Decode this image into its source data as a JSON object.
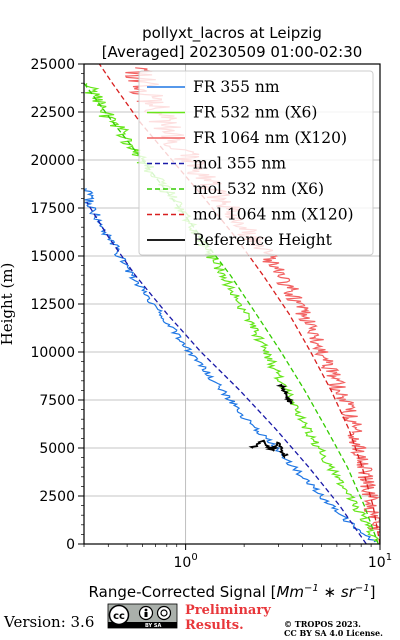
{
  "chart_data": {
    "type": "line",
    "title": "pollyxt_lacros at Leipzig",
    "subtitle": "[Averaged] 20230509 01:00-02:30",
    "xlabel": "Range-Corrected Signal [Mm⁻¹ * sr⁻¹]",
    "xlabel_parts": {
      "main": "Range-Corrected Signal [",
      "unit_a": "Mm",
      "exp_a": "−1",
      "mid": " ∗ ",
      "unit_b": "sr",
      "exp_b": "−1",
      "close": "]"
    },
    "ylabel": "Height (m)",
    "xscale": "log",
    "xlim": [
      0.3,
      10
    ],
    "ylim": [
      0,
      25000
    ],
    "x_tick_labels": [
      {
        "value": 1,
        "base": "10",
        "exp": "0"
      },
      {
        "value": 10,
        "base": "10",
        "exp": "1"
      }
    ],
    "y_ticks": [
      0,
      2500,
      5000,
      7500,
      10000,
      12500,
      15000,
      17500,
      20000,
      22500,
      25000
    ],
    "grid": true,
    "legend_position": "upper-right",
    "colors": {
      "fr355": "#1f77e4",
      "fr532": "#66e61a",
      "fr1064": "#f26262",
      "mol355": "#1a1aa8",
      "mol532": "#33cc00",
      "mol1064": "#d81f1f",
      "ref": "#000000"
    },
    "series": [
      {
        "name": "FR 355 nm",
        "style": "solid",
        "color_key": "fr355",
        "points": [
          [
            9.5,
            120
          ],
          [
            8.8,
            300
          ],
          [
            8.2,
            600
          ],
          [
            7.5,
            900
          ],
          [
            6.8,
            1200
          ],
          [
            6.5,
            1500
          ],
          [
            6.0,
            1800
          ],
          [
            5.5,
            2100
          ],
          [
            5.0,
            2500
          ],
          [
            4.5,
            3000
          ],
          [
            4.0,
            3500
          ],
          [
            3.6,
            4000
          ],
          [
            3.2,
            4500
          ],
          [
            2.9,
            5000
          ],
          [
            2.6,
            5500
          ],
          [
            2.3,
            6000
          ],
          [
            2.05,
            6500
          ],
          [
            1.85,
            7000
          ],
          [
            1.7,
            7500
          ],
          [
            1.55,
            8000
          ],
          [
            1.4,
            8500
          ],
          [
            1.28,
            9000
          ],
          [
            1.16,
            9500
          ],
          [
            1.05,
            10000
          ],
          [
            0.96,
            10500
          ],
          [
            0.88,
            11000
          ],
          [
            0.82,
            11500
          ],
          [
            0.74,
            12000
          ],
          [
            0.68,
            12500
          ],
          [
            0.62,
            13000
          ],
          [
            0.57,
            13500
          ],
          [
            0.53,
            14000
          ],
          [
            0.49,
            14500
          ],
          [
            0.46,
            15000
          ],
          [
            0.43,
            15500
          ],
          [
            0.4,
            16000
          ],
          [
            0.37,
            16500
          ],
          [
            0.35,
            17000
          ],
          [
            0.33,
            17500
          ],
          [
            0.32,
            18000
          ],
          [
            0.31,
            18500
          ]
        ]
      },
      {
        "name": "FR 532 nm (X6)",
        "style": "solid",
        "color_key": "fr532",
        "points": [
          [
            9.6,
            120
          ],
          [
            9.2,
            500
          ],
          [
            8.6,
            1000
          ],
          [
            8.0,
            1500
          ],
          [
            7.5,
            2000
          ],
          [
            7.0,
            2500
          ],
          [
            6.5,
            3000
          ],
          [
            6.0,
            3500
          ],
          [
            5.6,
            4000
          ],
          [
            5.2,
            4500
          ],
          [
            4.8,
            5000
          ],
          [
            4.5,
            5500
          ],
          [
            4.2,
            6000
          ],
          [
            3.95,
            6500
          ],
          [
            3.7,
            7000
          ],
          [
            3.5,
            7500
          ],
          [
            3.3,
            8000
          ],
          [
            3.1,
            8500
          ],
          [
            2.9,
            9000
          ],
          [
            2.75,
            9500
          ],
          [
            2.6,
            10000
          ],
          [
            2.45,
            10500
          ],
          [
            2.3,
            11000
          ],
          [
            2.15,
            11500
          ],
          [
            2.0,
            12000
          ],
          [
            1.9,
            12500
          ],
          [
            1.78,
            13000
          ],
          [
            1.66,
            13500
          ],
          [
            1.55,
            14000
          ],
          [
            1.45,
            14500
          ],
          [
            1.35,
            15000
          ],
          [
            1.25,
            15500
          ],
          [
            1.16,
            16000
          ],
          [
            1.08,
            16500
          ],
          [
            1.0,
            17000
          ],
          [
            0.92,
            17500
          ],
          [
            0.85,
            18000
          ],
          [
            0.78,
            18500
          ],
          [
            0.72,
            19000
          ],
          [
            0.66,
            19500
          ],
          [
            0.6,
            20000
          ],
          [
            0.55,
            20500
          ],
          [
            0.5,
            21000
          ],
          [
            0.46,
            21500
          ],
          [
            0.42,
            22000
          ],
          [
            0.38,
            22500
          ],
          [
            0.35,
            23000
          ],
          [
            0.33,
            23500
          ],
          [
            0.31,
            24000
          ]
        ]
      },
      {
        "name": "FR 1064 nm (X120)",
        "style": "solid",
        "color_key": "fr1064",
        "points": [
          [
            9.9,
            500
          ],
          [
            9.5,
            1000
          ],
          [
            9.0,
            2000
          ],
          [
            8.6,
            3000
          ],
          [
            8.2,
            4000
          ],
          [
            7.8,
            5000
          ],
          [
            7.4,
            6000
          ],
          [
            6.9,
            7000
          ],
          [
            6.2,
            8000
          ],
          [
            5.6,
            9000
          ],
          [
            5.0,
            10000
          ],
          [
            4.5,
            11000
          ],
          [
            4.0,
            12000
          ],
          [
            3.6,
            13000
          ],
          [
            3.1,
            14000
          ],
          [
            2.6,
            15000
          ],
          [
            2.2,
            16000
          ],
          [
            1.8,
            17000
          ],
          [
            1.5,
            18000
          ],
          [
            1.25,
            19000
          ],
          [
            1.05,
            20000
          ],
          [
            0.9,
            21000
          ],
          [
            0.78,
            22000
          ],
          [
            0.68,
            23000
          ],
          [
            0.6,
            24000
          ],
          [
            0.55,
            24800
          ]
        ]
      },
      {
        "name": "mol 355 nm",
        "style": "dashed",
        "color_key": "mol355",
        "points": [
          [
            8.5,
            0
          ],
          [
            6.2,
            2000
          ],
          [
            4.3,
            4000
          ],
          [
            2.9,
            6000
          ],
          [
            1.9,
            8000
          ],
          [
            1.2,
            10000
          ],
          [
            0.8,
            12000
          ],
          [
            0.55,
            14000
          ],
          [
            0.4,
            16000
          ],
          [
            0.31,
            17800
          ]
        ]
      },
      {
        "name": "mol 532 nm (X6)",
        "style": "dashed",
        "color_key": "mol532",
        "points": [
          [
            9.8,
            0
          ],
          [
            8.3,
            2000
          ],
          [
            6.8,
            4000
          ],
          [
            5.3,
            6000
          ],
          [
            4.1,
            8000
          ],
          [
            3.1,
            10000
          ],
          [
            2.3,
            12000
          ],
          [
            1.7,
            14000
          ],
          [
            1.2,
            16000
          ],
          [
            0.85,
            18000
          ],
          [
            0.6,
            20000
          ],
          [
            0.42,
            22000
          ],
          [
            0.3,
            24000
          ]
        ]
      },
      {
        "name": "mol 1064 nm (X120)",
        "style": "dashed",
        "color_key": "mol1064",
        "points": [
          [
            10.0,
            0
          ],
          [
            9.2,
            2000
          ],
          [
            8.1,
            4000
          ],
          [
            6.9,
            6000
          ],
          [
            5.6,
            8000
          ],
          [
            4.4,
            10000
          ],
          [
            3.4,
            12000
          ],
          [
            2.5,
            14000
          ],
          [
            1.8,
            16000
          ],
          [
            1.25,
            18000
          ],
          [
            0.85,
            20000
          ],
          [
            0.58,
            22000
          ],
          [
            0.42,
            24000
          ],
          [
            0.36,
            25000
          ]
        ]
      },
      {
        "name": "Reference Height",
        "style": "solid-thick",
        "color_key": "ref",
        "segments": [
          [
            [
              2.2,
              5000
            ],
            [
              2.5,
              5400
            ],
            [
              2.8,
              4850
            ],
            [
              3.0,
              5300
            ],
            [
              3.15,
              4550
            ],
            [
              3.3,
              4700
            ]
          ],
          [
            [
              3.1,
              8300
            ],
            [
              3.2,
              8000
            ],
            [
              3.35,
              7700
            ],
            [
              3.45,
              7300
            ]
          ]
        ]
      }
    ]
  },
  "footer": {
    "version": "Version: 3.6",
    "preliminary_line1": "Preliminary",
    "preliminary_line2": "Results.",
    "copyright_line1": "© TROPOS 2023.",
    "copyright_line2": "CC BY SA 4.0 License.",
    "cc_badge_text": "BY   SA"
  }
}
